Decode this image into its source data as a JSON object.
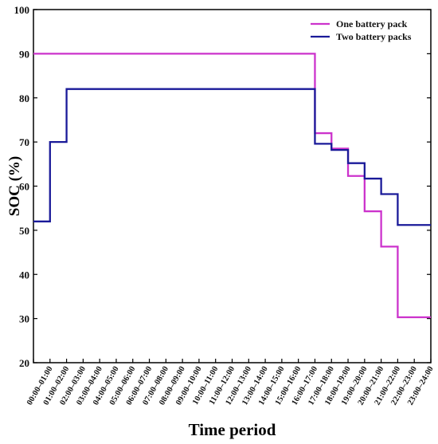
{
  "chart_data": {
    "type": "line",
    "step": true,
    "title": "",
    "xlabel": "Time period",
    "ylabel": "SOC (%)",
    "ylim": [
      20,
      100
    ],
    "yticks": [
      20,
      30,
      40,
      50,
      60,
      70,
      80,
      90,
      100
    ],
    "grid": false,
    "legend_position": "top-right",
    "categories": [
      "00:00–01:00",
      "01:00–02:00",
      "02:00–03:00",
      "03:00–04:00",
      "04:00–05:00",
      "05:00–06:00",
      "06:00–07:00",
      "07:00–08:00",
      "08:00–09:00",
      "09:00–10:00",
      "10:00–11:00",
      "11:00–12:00",
      "12:00–13:00",
      "13:00–14:00",
      "14:00–15:00",
      "15:00–16:00",
      "16:00–17:00",
      "17:00–18:00",
      "18:00–19:00",
      "19:00–20:00",
      "20:00–21:00",
      "21:00–22:00",
      "22:00–23:00",
      "23:00–24:00"
    ],
    "series": [
      {
        "name": "One battery pack",
        "color": "#cc33cc",
        "values": [
          90,
          90,
          90,
          90,
          90,
          90,
          90,
          90,
          90,
          90,
          90,
          90,
          90,
          90,
          90,
          90,
          90,
          72,
          68.5,
          62.3,
          54.3,
          46.3,
          30.3,
          30.3
        ]
      },
      {
        "name": "Two battery packs",
        "color": "#1a1a99",
        "values": [
          52,
          70,
          82,
          82,
          82,
          82,
          82,
          82,
          82,
          82,
          82,
          82,
          82,
          82,
          82,
          82,
          82,
          69.6,
          68.2,
          65.2,
          61.7,
          58.2,
          51.2,
          51.2
        ]
      }
    ]
  }
}
